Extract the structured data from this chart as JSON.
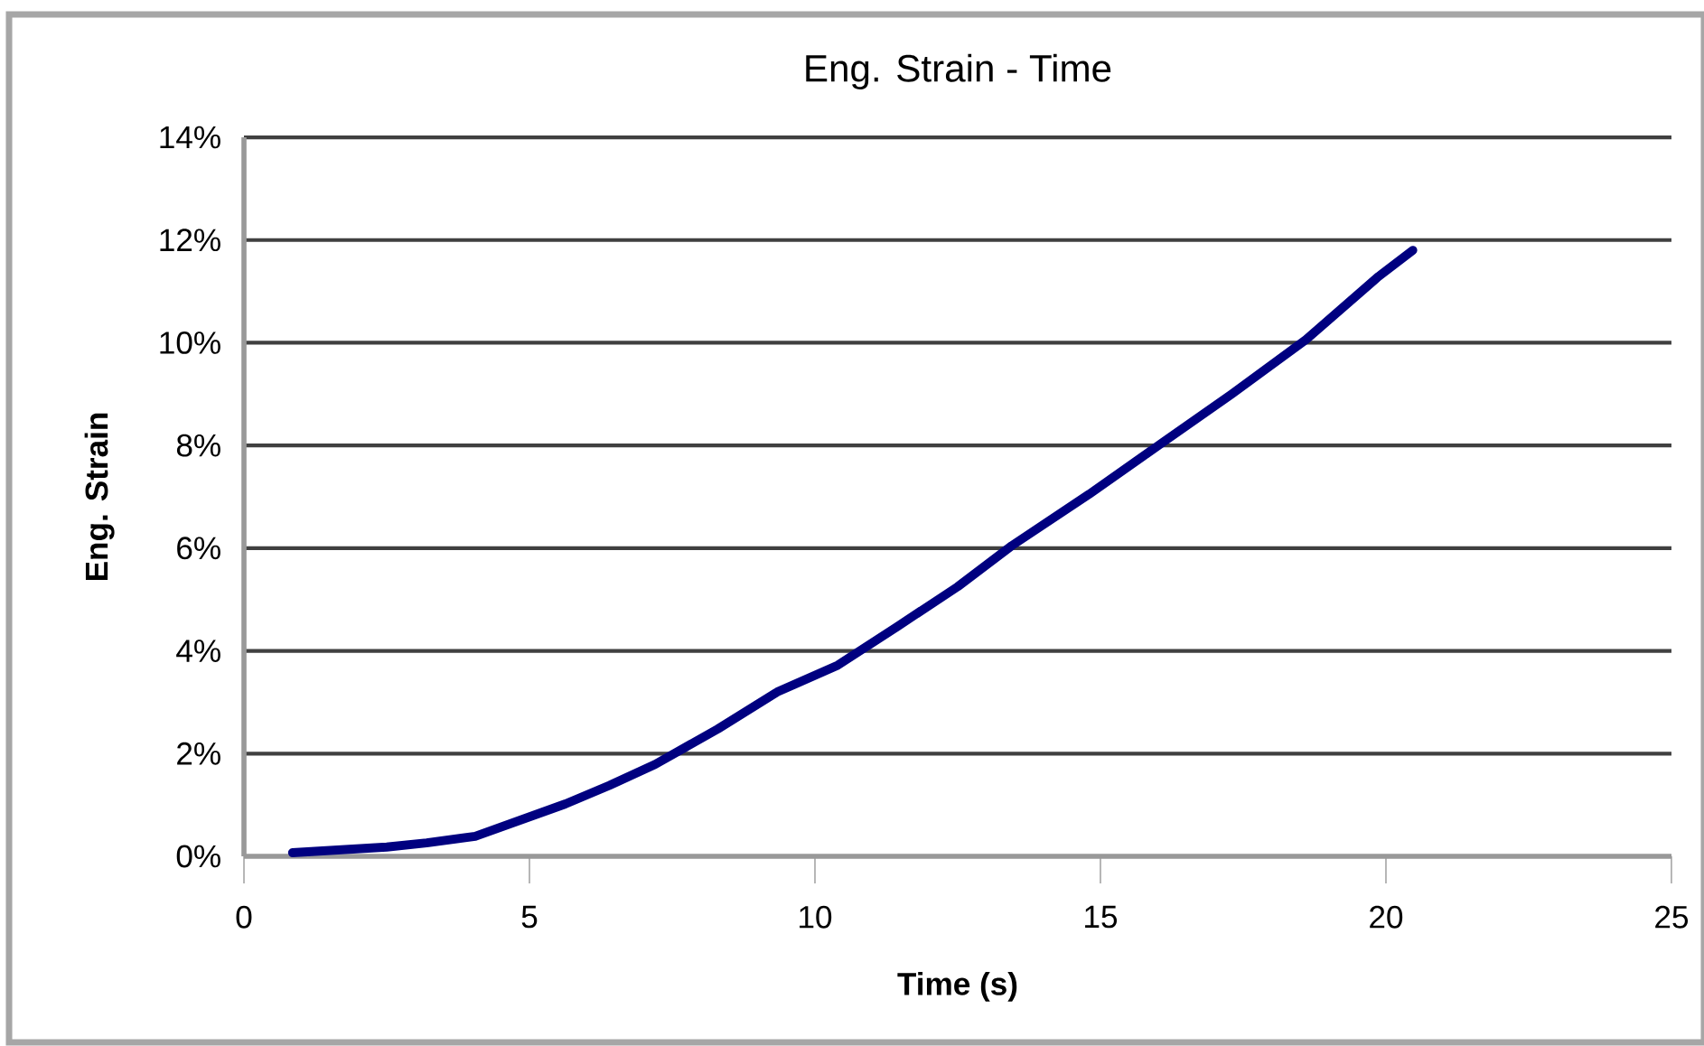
{
  "chart_data": {
    "type": "line",
    "title": "Eng. Strain - Time",
    "xlabel": "Time (s)",
    "ylabel": "Eng. Strain",
    "x": [
      0.85,
      2.5,
      3.2,
      4.05,
      5.63,
      6.4,
      7.2,
      8.3,
      9.34,
      10.4,
      11.45,
      12.5,
      13.45,
      14.8,
      16.08,
      17.3,
      18.6,
      19.87,
      20.47
    ],
    "series": [
      {
        "color": "#000080",
        "values": [
          0.07,
          0.18,
          0.26,
          0.39,
          1.02,
          1.38,
          1.79,
          2.48,
          3.2,
          3.72,
          4.48,
          5.25,
          6.05,
          7.05,
          8.05,
          9.0,
          10.06,
          11.29,
          11.8
        ]
      }
    ],
    "xlim": [
      0,
      25
    ],
    "xticks": [
      0,
      5,
      10,
      15,
      20,
      25
    ],
    "ylim": [
      0,
      14
    ],
    "yticks": [
      {
        "value": 0,
        "label": "0%"
      },
      {
        "value": 2,
        "label": "2%"
      },
      {
        "value": 4,
        "label": "4%"
      },
      {
        "value": 6,
        "label": "6%"
      },
      {
        "value": 8,
        "label": "8%"
      },
      {
        "value": 10,
        "label": "10%"
      },
      {
        "value": 12,
        "label": "12%"
      },
      {
        "value": 14,
        "label": "14%"
      }
    ],
    "grid": "y",
    "marker": "none",
    "line_style": "solid"
  }
}
